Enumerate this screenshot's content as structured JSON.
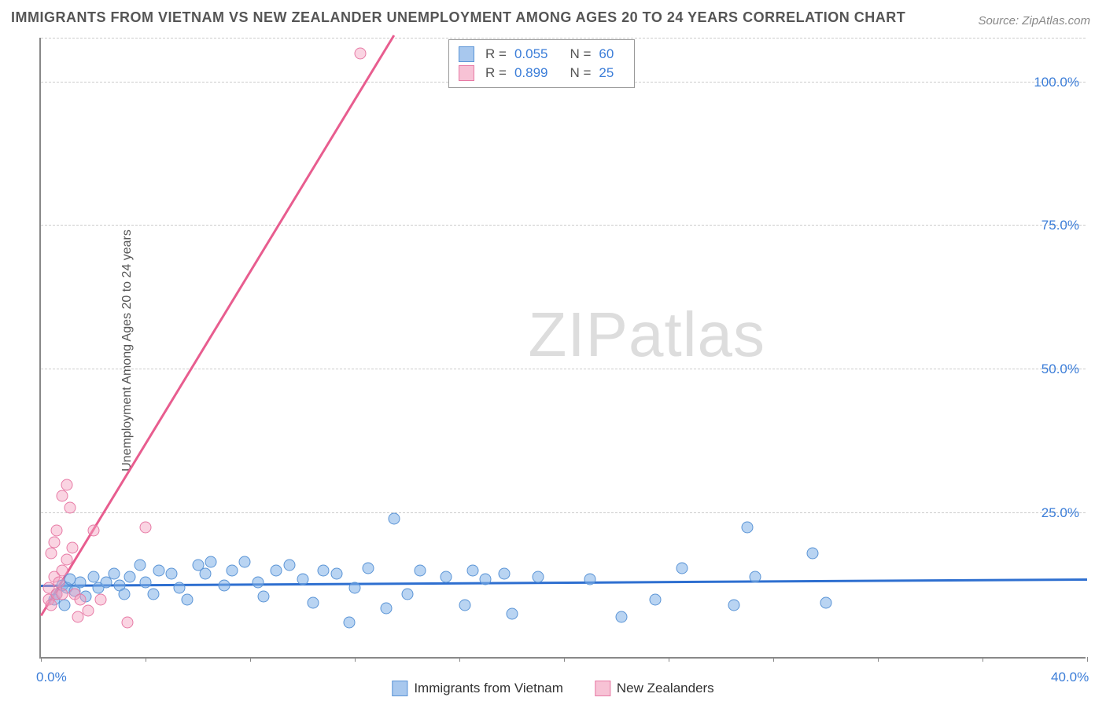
{
  "title": "IMMIGRANTS FROM VIETNAM VS NEW ZEALANDER UNEMPLOYMENT AMONG AGES 20 TO 24 YEARS CORRELATION CHART",
  "source": "Source: ZipAtlas.com",
  "watermark_a": "ZIP",
  "watermark_b": "atlas",
  "y_axis_label": "Unemployment Among Ages 20 to 24 years",
  "chart": {
    "type": "scatter",
    "xlim": [
      0,
      40
    ],
    "ylim": [
      0,
      108
    ],
    "x_ticks": [
      0,
      4,
      8,
      12,
      16,
      20,
      24,
      28,
      32,
      36,
      40
    ],
    "x_tick_labels": {
      "0": "0.0%",
      "40": "40.0%"
    },
    "y_ticks": [
      25,
      50,
      75,
      100
    ],
    "y_tick_labels": {
      "25": "25.0%",
      "50": "50.0%",
      "75": "75.0%",
      "100": "100.0%"
    },
    "grid_color": "#cccccc",
    "axis_color": "#888888",
    "background": "#ffffff",
    "series": [
      {
        "name": "Immigrants from Vietnam",
        "color_fill": "#80b0e8",
        "color_stroke": "#5a94d6",
        "fill_opacity": 0.55,
        "marker_size": 15,
        "R": "0.055",
        "N": "60",
        "trend": {
          "x1": 0,
          "y1": 12.3,
          "x2": 40,
          "y2": 13.4,
          "color": "#2e6fd0",
          "width": 2.5
        },
        "points": [
          [
            0.5,
            10
          ],
          [
            0.6,
            11
          ],
          [
            0.8,
            12.5
          ],
          [
            0.9,
            9
          ],
          [
            1.0,
            12
          ],
          [
            1.1,
            13.5
          ],
          [
            1.3,
            11.5
          ],
          [
            1.5,
            13
          ],
          [
            1.7,
            10.5
          ],
          [
            2.0,
            14
          ],
          [
            2.2,
            12
          ],
          [
            2.5,
            13
          ],
          [
            2.8,
            14.5
          ],
          [
            3.0,
            12.5
          ],
          [
            3.2,
            11
          ],
          [
            3.4,
            14
          ],
          [
            3.8,
            16
          ],
          [
            4.0,
            13
          ],
          [
            4.3,
            11
          ],
          [
            4.5,
            15
          ],
          [
            5.0,
            14.5
          ],
          [
            5.3,
            12
          ],
          [
            5.6,
            10
          ],
          [
            6.0,
            16
          ],
          [
            6.3,
            14.5
          ],
          [
            6.5,
            16.5
          ],
          [
            7.0,
            12.5
          ],
          [
            7.3,
            15
          ],
          [
            7.8,
            16.5
          ],
          [
            8.3,
            13
          ],
          [
            8.5,
            10.5
          ],
          [
            9.0,
            15
          ],
          [
            9.5,
            16
          ],
          [
            10.0,
            13.5
          ],
          [
            10.4,
            9.5
          ],
          [
            10.8,
            15
          ],
          [
            11.3,
            14.5
          ],
          [
            11.8,
            6
          ],
          [
            12.0,
            12
          ],
          [
            12.5,
            15.5
          ],
          [
            13.2,
            8.5
          ],
          [
            13.5,
            24
          ],
          [
            14.0,
            11
          ],
          [
            14.5,
            15
          ],
          [
            15.5,
            14
          ],
          [
            16.2,
            9
          ],
          [
            16.5,
            15
          ],
          [
            17.0,
            13.5
          ],
          [
            17.7,
            14.5
          ],
          [
            18.0,
            7.5
          ],
          [
            19.0,
            14
          ],
          [
            21.0,
            13.5
          ],
          [
            22.2,
            7
          ],
          [
            23.5,
            10
          ],
          [
            24.5,
            15.5
          ],
          [
            26.5,
            9
          ],
          [
            27.0,
            22.5
          ],
          [
            27.3,
            14
          ],
          [
            29.5,
            18
          ],
          [
            30.0,
            9.5
          ]
        ]
      },
      {
        "name": "New Zealanders",
        "color_fill": "#f4a0be",
        "color_stroke": "#e77aa5",
        "fill_opacity": 0.45,
        "marker_size": 15,
        "R": "0.899",
        "N": "25",
        "trend": {
          "x1": 0,
          "y1": 7,
          "x2": 13.5,
          "y2": 108,
          "color": "#e85d8f",
          "width": 2.5
        },
        "points": [
          [
            0.3,
            10
          ],
          [
            0.3,
            12
          ],
          [
            0.4,
            18
          ],
          [
            0.5,
            20
          ],
          [
            0.6,
            22
          ],
          [
            0.5,
            14
          ],
          [
            0.4,
            9
          ],
          [
            0.6,
            11
          ],
          [
            0.7,
            13
          ],
          [
            0.8,
            11
          ],
          [
            0.8,
            15
          ],
          [
            0.8,
            28
          ],
          [
            1.0,
            30
          ],
          [
            1.1,
            26
          ],
          [
            1.0,
            17
          ],
          [
            1.2,
            19
          ],
          [
            1.3,
            11
          ],
          [
            1.4,
            7
          ],
          [
            1.5,
            10
          ],
          [
            1.8,
            8
          ],
          [
            2.0,
            22
          ],
          [
            2.3,
            10
          ],
          [
            3.3,
            6
          ],
          [
            4.0,
            22.5
          ],
          [
            12.2,
            105
          ]
        ]
      }
    ],
    "stats_legend": {
      "rows": [
        {
          "swatch_fill": "#a8c8ee",
          "swatch_stroke": "#5a94d6",
          "R_label": "R =",
          "R_val": "0.055",
          "N_label": "N =",
          "N_val": "60"
        },
        {
          "swatch_fill": "#f7c2d5",
          "swatch_stroke": "#e77aa5",
          "R_label": "R =",
          "R_val": "0.899",
          "N_label": "N =",
          "N_val": "25"
        }
      ]
    },
    "bottom_legend": [
      {
        "swatch_fill": "#a8c8ee",
        "swatch_stroke": "#5a94d6",
        "label": "Immigrants from Vietnam"
      },
      {
        "swatch_fill": "#f7c2d5",
        "swatch_stroke": "#e77aa5",
        "label": "New Zealanders"
      }
    ]
  }
}
